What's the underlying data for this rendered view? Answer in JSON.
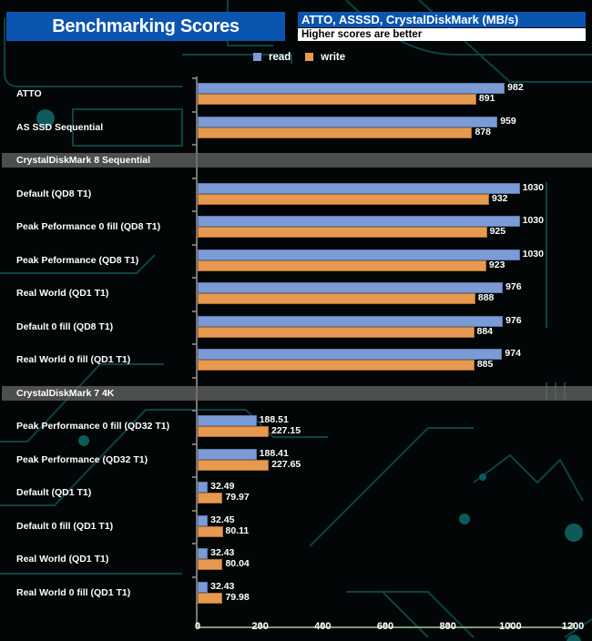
{
  "header": {
    "title": "Benchmarking Scores",
    "subtitle": "ATTO, ASSSD, CrystalDiskMark (MB/s)",
    "note": "Higher scores are better"
  },
  "chart_data": {
    "type": "bar",
    "orientation": "horizontal",
    "title": "Benchmarking Scores",
    "subtitle": "ATTO, ASSSD, CrystalDiskMark (MB/s)",
    "xlim": [
      0,
      1200
    ],
    "xticks": [
      "0",
      "200",
      "400",
      "600",
      "800",
      "1000",
      "1200"
    ],
    "legend": {
      "placement": "top",
      "entries": [
        "read",
        "write"
      ]
    },
    "colors": {
      "read": "#7b9bd6",
      "write": "#e69a50"
    },
    "rows": [
      {
        "kind": "item",
        "label": "ATTO",
        "read": 982,
        "write": 891,
        "read_label": "982",
        "write_label": "891"
      },
      {
        "kind": "item",
        "label": "AS SSD Sequential",
        "read": 959,
        "write": 878,
        "read_label": "959",
        "write_label": "878"
      },
      {
        "kind": "section",
        "label": "CrystalDiskMark 8 Sequential"
      },
      {
        "kind": "item",
        "label": "Default (QD8 T1)",
        "read": 1030,
        "write": 932,
        "read_label": "1030",
        "write_label": "932"
      },
      {
        "kind": "item",
        "label": "Peak Peformance 0 fill (QD8 T1)",
        "read": 1030,
        "write": 925,
        "read_label": "1030",
        "write_label": "925"
      },
      {
        "kind": "item",
        "label": "Peak Peformance (QD8 T1)",
        "read": 1030,
        "write": 923,
        "read_label": "1030",
        "write_label": "923"
      },
      {
        "kind": "item",
        "label": "Real World (QD1 T1)",
        "read": 976,
        "write": 888,
        "read_label": "976",
        "write_label": "888"
      },
      {
        "kind": "item",
        "label": "Default 0 fill (QD8 T1)",
        "read": 976,
        "write": 884,
        "read_label": "976",
        "write_label": "884"
      },
      {
        "kind": "item",
        "label": "Real World 0 fill (QD1 T1)",
        "read": 974,
        "write": 885,
        "read_label": "974",
        "write_label": "885"
      },
      {
        "kind": "section",
        "label": "CrystalDiskMark 7 4K"
      },
      {
        "kind": "item",
        "label": "Peak Performance 0 fill (QD32 T1)",
        "read": 188.51,
        "write": 227.15,
        "read_label": "188.51",
        "write_label": "227.15"
      },
      {
        "kind": "item",
        "label": "Peak Performance (QD32 T1)",
        "read": 188.41,
        "write": 227.65,
        "read_label": "188.41",
        "write_label": "227.65"
      },
      {
        "kind": "item",
        "label": "Default (QD1 T1)",
        "read": 32.49,
        "write": 79.97,
        "read_label": "32.49",
        "write_label": "79.97"
      },
      {
        "kind": "item",
        "label": "Default 0 fill (QD1 T1)",
        "read": 32.45,
        "write": 80.11,
        "read_label": "32.45",
        "write_label": "80.11"
      },
      {
        "kind": "item",
        "label": "Real World  (QD1 T1)",
        "read": 32.43,
        "write": 80.04,
        "read_label": "32.43",
        "write_label": "80.04"
      },
      {
        "kind": "item",
        "label": "Real World 0 fill  (QD1 T1)",
        "read": 32.43,
        "write": 79.98,
        "read_label": "32.43",
        "write_label": "79.98"
      }
    ]
  }
}
